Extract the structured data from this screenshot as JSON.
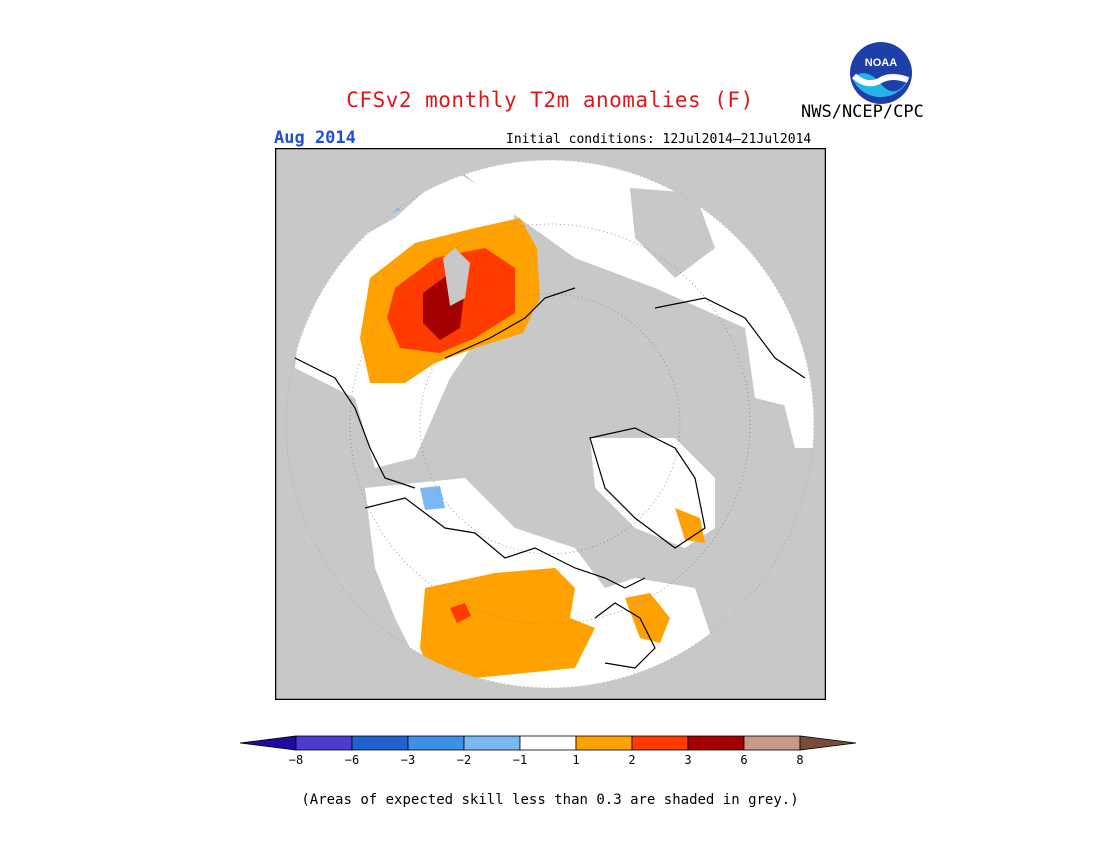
{
  "header": {
    "title": "CFSv2 monthly T2m anomalies (F)",
    "valid_period": "Aug 2014",
    "initial_conditions": "Initial conditions: 12Jul2014–21Jul2014",
    "agency": "NWS/NCEP/CPC",
    "logo_text": "NOAA"
  },
  "map": {
    "projection": "north-polar-stereographic",
    "skill_mask_color": "#c8c8c8"
  },
  "legend": {
    "ticks": [
      "−8",
      "−6",
      "−3",
      "−2",
      "−1",
      "1",
      "2",
      "3",
      "6",
      "8"
    ],
    "colors": [
      "#1e0a9e",
      "#4a3ccf",
      "#1f62d0",
      "#3d8fe8",
      "#7ab8f5",
      "#ffffff",
      "#ffa100",
      "#ff3b00",
      "#a50000",
      "#c9998b",
      "#7a4a3a"
    ]
  },
  "footnote": "(Areas of expected skill less than 0.3 are shaded in grey.)"
}
